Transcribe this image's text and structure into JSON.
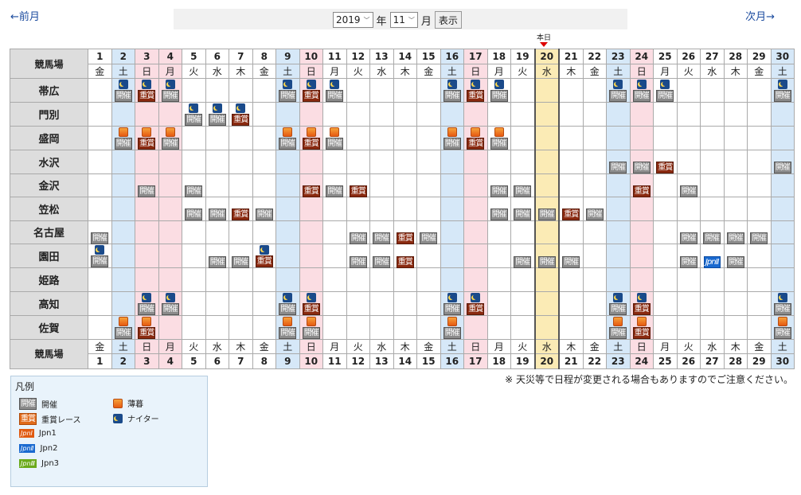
{
  "nav": {
    "prev": "←前月",
    "next": "次月→"
  },
  "selector": {
    "year": "2019",
    "year_unit": "年",
    "month": "11",
    "month_unit": "月",
    "show": "表示"
  },
  "today_label": "本日",
  "header_label": "競馬場",
  "today_date": 20,
  "days": [
    {
      "d": "1",
      "w": "金"
    },
    {
      "d": "2",
      "w": "土"
    },
    {
      "d": "3",
      "w": "日"
    },
    {
      "d": "4",
      "w": "月"
    },
    {
      "d": "5",
      "w": "火"
    },
    {
      "d": "6",
      "w": "水"
    },
    {
      "d": "7",
      "w": "木"
    },
    {
      "d": "8",
      "w": "金"
    },
    {
      "d": "9",
      "w": "土"
    },
    {
      "d": "10",
      "w": "日"
    },
    {
      "d": "11",
      "w": "月"
    },
    {
      "d": "12",
      "w": "火"
    },
    {
      "d": "13",
      "w": "水"
    },
    {
      "d": "14",
      "w": "木"
    },
    {
      "d": "15",
      "w": "金"
    },
    {
      "d": "16",
      "w": "土"
    },
    {
      "d": "17",
      "w": "日"
    },
    {
      "d": "18",
      "w": "月"
    },
    {
      "d": "19",
      "w": "火"
    },
    {
      "d": "20",
      "w": "水"
    },
    {
      "d": "21",
      "w": "木"
    },
    {
      "d": "22",
      "w": "金"
    },
    {
      "d": "23",
      "w": "土"
    },
    {
      "d": "24",
      "w": "日"
    },
    {
      "d": "25",
      "w": "月"
    },
    {
      "d": "26",
      "w": "火"
    },
    {
      "d": "27",
      "w": "水"
    },
    {
      "d": "28",
      "w": "木"
    },
    {
      "d": "29",
      "w": "金"
    },
    {
      "d": "30",
      "w": "土"
    }
  ],
  "holidays": [
    3,
    4,
    10,
    17,
    23,
    24
  ],
  "venues": [
    {
      "name": "帯広",
      "cells": {
        "2": "n:k",
        "3": "n:j",
        "4": "n:k",
        "9": "n:k",
        "10": "n:j",
        "11": "n:k",
        "16": "n:k",
        "17": "n:j",
        "18": "n:k",
        "23": "n:k",
        "24": "n:k",
        "25": "n:k",
        "30": "n:k"
      }
    },
    {
      "name": "門別",
      "cells": {
        "5": "n:k",
        "6": "n:k",
        "7": "n:j"
      }
    },
    {
      "name": "盛岡",
      "cells": {
        "2": "d:k",
        "3": "d:j",
        "4": "d:k",
        "9": "d:k",
        "10": "d:j",
        "11": "d:k",
        "16": "d:k",
        "17": "d:j",
        "18": "d:k"
      }
    },
    {
      "name": "水沢",
      "cells": {
        "23": "-:k",
        "24": "-:k",
        "25": "-:j",
        "30": "-:k"
      }
    },
    {
      "name": "金沢",
      "cells": {
        "3": "-:k",
        "5": "-:k",
        "10": "-:j",
        "11": "-:k",
        "12": "-:j",
        "18": "-:k",
        "19": "-:k",
        "24": "-:j",
        "26": "-:k"
      }
    },
    {
      "name": "笠松",
      "cells": {
        "5": "-:k",
        "6": "-:k",
        "7": "-:j",
        "8": "-:k",
        "18": "-:k",
        "19": "-:k",
        "20": "-:k",
        "21": "-:j",
        "22": "-:k"
      }
    },
    {
      "name": "名古屋",
      "cells": {
        "1": "-:k",
        "12": "-:k",
        "13": "-:k",
        "14": "-:j",
        "15": "-:k",
        "26": "-:k",
        "27": "-:k",
        "28": "-:k",
        "29": "-:k"
      }
    },
    {
      "name": "園田",
      "cells": {
        "1": "n:k",
        "6": "-:k",
        "7": "-:k",
        "8": "n:j",
        "12": "-:k",
        "13": "-:k",
        "14": "-:j",
        "19": "-:k",
        "20": "-:k",
        "21": "-:k",
        "26": "-:k",
        "27": "-:2",
        "28": "-:k"
      }
    },
    {
      "name": "姫路",
      "cells": {}
    },
    {
      "name": "高知",
      "cells": {
        "3": "n:k",
        "4": "n:k",
        "9": "n:k",
        "10": "n:j",
        "16": "n:k",
        "17": "n:j",
        "23": "n:k",
        "24": "n:j",
        "30": "n:k"
      }
    },
    {
      "name": "佐賀",
      "cells": {
        "2": "d:k",
        "3": "d:j",
        "9": "d:k",
        "10": "d:k",
        "16": "d:k",
        "23": "d:k",
        "24": "d:j",
        "30": "d:k"
      }
    }
  ],
  "badges": {
    "k": "開催",
    "j": "重賞",
    "2": "JpnII"
  },
  "note": "※ 天災等で日程が変更される場合もありますのでご注意ください。",
  "legend": {
    "title": "凡例",
    "kaisai": "開催",
    "juusho": "重賞レース",
    "jpn1": "Jpn1",
    "jpn2": "Jpn2",
    "jpn3": "Jpn3",
    "hakubo": "薄暮",
    "nighter": "ナイター",
    "jpn1_icon": "JpnⅠ",
    "jpn2_icon": "JpnⅡ",
    "jpn3_icon": "JpnⅢ"
  },
  "colors": {
    "sat": "#d6e8f8",
    "sun": "#fbdde3",
    "today": "#fbebb5",
    "kaisai": "#8a8a8a",
    "juusho": "#8a2a10",
    "jpn1": "#e05a10",
    "jpn2": "#1a6ad0",
    "jpn3": "#6aaa1a"
  }
}
